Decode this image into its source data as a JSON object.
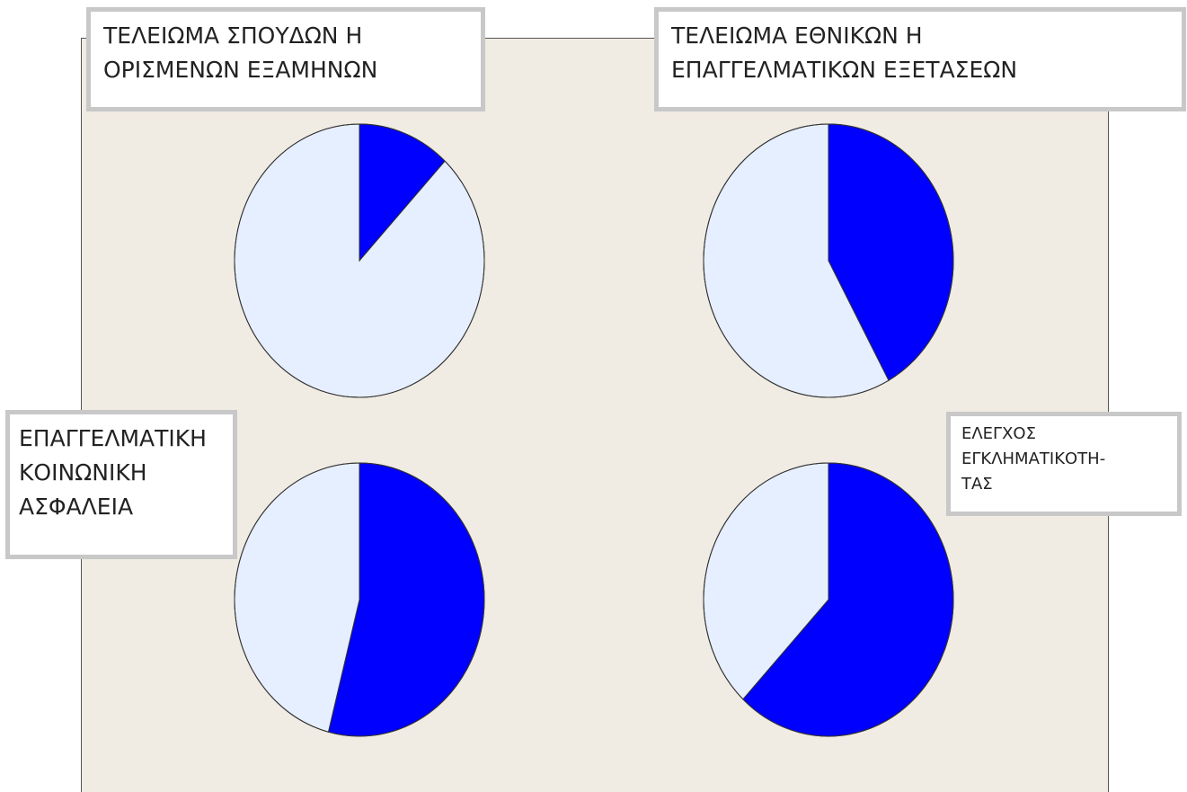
{
  "chart_data": [
    {
      "type": "pie",
      "title": "ΤΕΛΕΙΩΜΑ ΣΠΟΥΔΩΝ Η\nΟΡΙΣΜΕΝΩΝ ΕΞΑΜΗΝΩΝ",
      "values": [
        12,
        88
      ],
      "colors": [
        "#0000ff",
        "#e6efff"
      ]
    },
    {
      "type": "pie",
      "title": "ΤΕΛΕΙΩΜΑ ΕΘΝΙΚΩΝ Η\nΕΠΑΓΓΕΛΜΑΤΙΚΩΝ ΕΞΕΤΑΣΕΩΝ",
      "values": [
        42,
        58
      ],
      "colors": [
        "#0000ff",
        "#e6efff"
      ]
    },
    {
      "type": "pie",
      "title": "ΕΠΑΓΓΕΛΜΑΤΙΚΗ\nΚΟΙΝΩΝΙΚΗ\nΑΣΦΑΛΕΙΑ",
      "values": [
        54,
        46
      ],
      "colors": [
        "#0000ff",
        "#e6efff"
      ]
    },
    {
      "type": "pie",
      "title": "ΕΛΕΓΧΟΣ\nΕΓΚΛΗΜΑΤΙΚΟΤΗ-\nΤΑΣ",
      "values": [
        62,
        38
      ],
      "colors": [
        "#0000ff",
        "#e6efff"
      ]
    }
  ]
}
